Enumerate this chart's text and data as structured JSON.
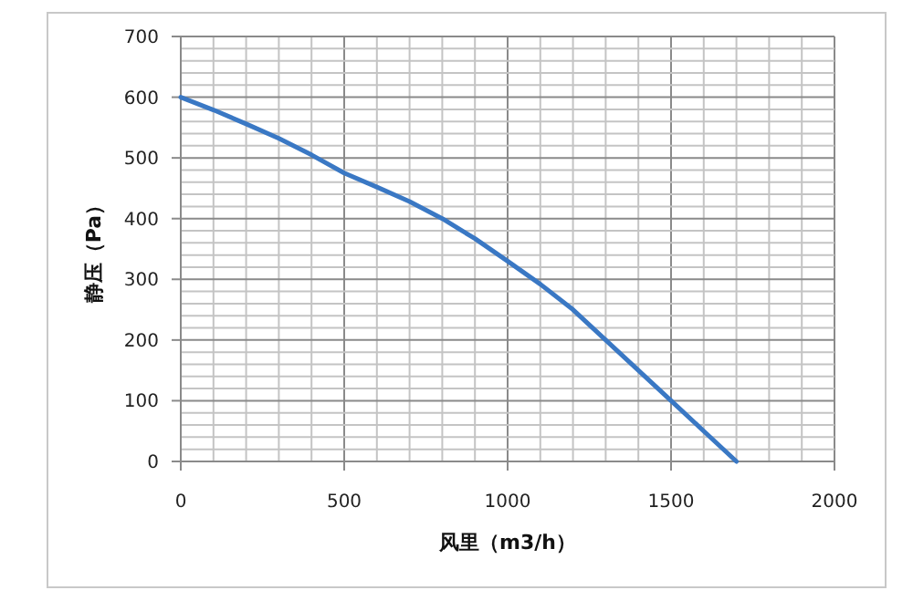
{
  "chart_data": {
    "type": "line",
    "xlabel": "风里（m3/h）",
    "ylabel": "静压（Pa）",
    "grid": true,
    "marker": "none",
    "line_style": "solid",
    "xlim": [
      0,
      2000
    ],
    "ylim": [
      0,
      700
    ],
    "xticks": [
      0,
      {
        "value": 100,
        "label": null
      },
      {
        "value": 200,
        "label": null
      },
      {
        "value": 300,
        "label": null
      },
      {
        "value": 400,
        "label": null
      },
      500,
      {
        "value": 600,
        "label": null
      },
      {
        "value": 700,
        "label": null
      },
      {
        "value": 800,
        "label": null
      },
      {
        "value": 900,
        "label": null
      },
      1000,
      {
        "value": 1100,
        "label": null
      },
      {
        "value": 1200,
        "label": null
      },
      {
        "value": 1300,
        "label": null
      },
      {
        "value": 1400,
        "label": null
      },
      1500,
      {
        "value": 1600,
        "label": null
      },
      {
        "value": 1700,
        "label": null
      },
      {
        "value": 1800,
        "label": null
      },
      {
        "value": 1900,
        "label": null
      },
      2000
    ],
    "yticks": [
      0,
      {
        "value": 20,
        "label": null
      },
      {
        "value": 40,
        "label": null
      },
      {
        "value": 60,
        "label": null
      },
      {
        "value": 80,
        "label": null
      },
      100,
      {
        "value": 120,
        "label": null
      },
      {
        "value": 140,
        "label": null
      },
      {
        "value": 160,
        "label": null
      },
      {
        "value": 180,
        "label": null
      },
      200,
      {
        "value": 220,
        "label": null
      },
      {
        "value": 240,
        "label": null
      },
      {
        "value": 260,
        "label": null
      },
      {
        "value": 280,
        "label": null
      },
      300,
      {
        "value": 320,
        "label": null
      },
      {
        "value": 340,
        "label": null
      },
      {
        "value": 360,
        "label": null
      },
      {
        "value": 380,
        "label": null
      },
      400,
      {
        "value": 420,
        "label": null
      },
      {
        "value": 440,
        "label": null
      },
      {
        "value": 460,
        "label": null
      },
      {
        "value": 480,
        "label": null
      },
      500,
      {
        "value": 520,
        "label": null
      },
      {
        "value": 540,
        "label": null
      },
      {
        "value": 560,
        "label": null
      },
      {
        "value": 580,
        "label": null
      },
      600,
      {
        "value": 620,
        "label": null
      },
      {
        "value": 640,
        "label": null
      },
      {
        "value": 660,
        "label": null
      },
      {
        "value": 680,
        "label": null
      },
      700
    ],
    "x": [
      0,
      100,
      200,
      300,
      400,
      500,
      600,
      700,
      800,
      900,
      1000,
      1100,
      1200,
      1300,
      1400,
      1500,
      1600,
      1700
    ],
    "series": [
      {
        "color": "#3a78c4",
        "values": [
          600,
          579,
          556,
          532,
          505,
          475,
          452,
          428,
          400,
          367,
          330,
          292,
          250,
          200,
          150,
          100,
          50,
          0
        ]
      }
    ]
  }
}
